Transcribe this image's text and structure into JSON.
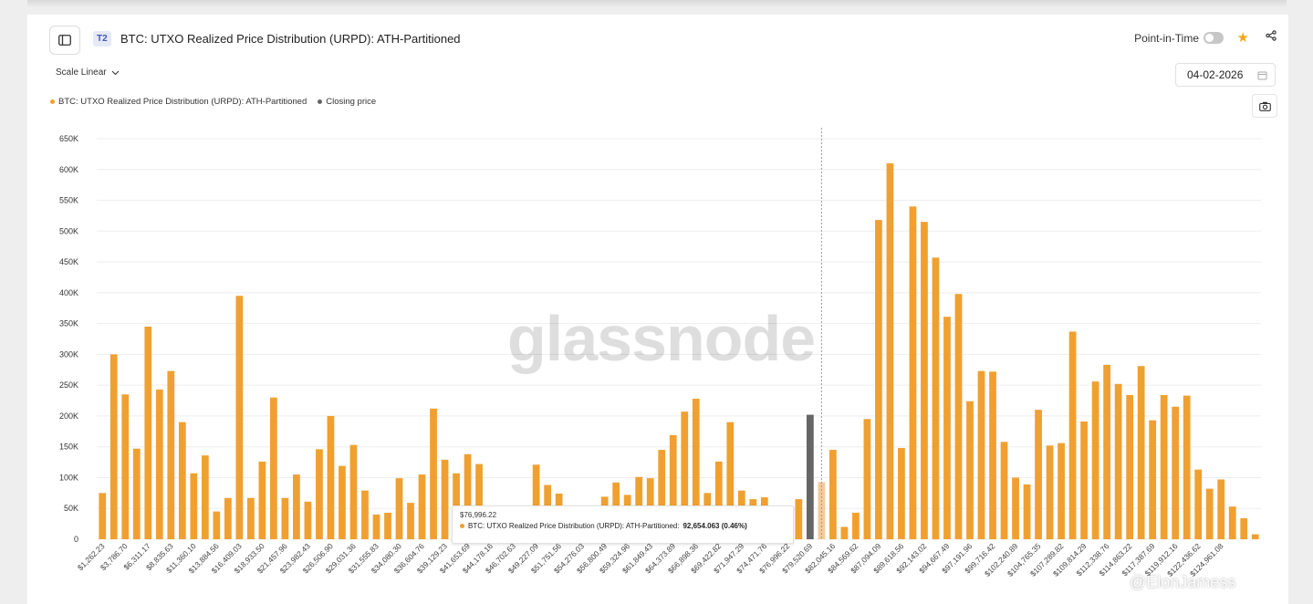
{
  "header": {
    "tier_badge": "T2",
    "title": "BTC: UTXO Realized Price Distribution (URPD): ATH-Partitioned",
    "point_in_time_label": "Point-in-Time"
  },
  "controls": {
    "scale_label": "Scale Linear",
    "date_value": "04-02-2026"
  },
  "legend": [
    {
      "label": "BTC: UTXO Realized Price Distribution (URPD): ATH-Partitioned",
      "color": "#f0a030"
    },
    {
      "label": "Closing price",
      "color": "#666666"
    }
  ],
  "watermark": "glassnode",
  "credit": "@ElonJamess",
  "tooltip": {
    "date": "$76,996.22",
    "series": "BTC: UTXO Realized Price Distribution (URPD): ATH-Partitioned:",
    "value": "92,654.063 (0.46%)"
  },
  "colors": {
    "bar": "#f0a030",
    "highlight_bar": "#f5c997",
    "closing_price": "#666666",
    "grid": "#eeeeee"
  },
  "chart_data": {
    "type": "bar",
    "ylim": [
      0,
      650000
    ],
    "yticks": [
      0,
      50000,
      100000,
      150000,
      200000,
      250000,
      300000,
      350000,
      400000,
      450000,
      500000,
      550000,
      600000,
      650000
    ],
    "ytick_labels": [
      "0",
      "50K",
      "100K",
      "150K",
      "200K",
      "250K",
      "300K",
      "350K",
      "400K",
      "450K",
      "500K",
      "550K",
      "600K",
      "650K"
    ],
    "tick_labels": [
      "$1,262.23",
      "$3,786.70",
      "$6,311.17",
      "$8,835.63",
      "$11,360.10",
      "$13,884.56",
      "$16,409.03",
      "$18,933.50",
      "$21,457.96",
      "$23,982.43",
      "$26,506.90",
      "$29,031.36",
      "$31,555.83",
      "$34,080.30",
      "$36,604.76",
      "$39,129.23",
      "$41,653.69",
      "$44,178.16",
      "$46,702.63",
      "$49,227.09",
      "$51,751.56",
      "$54,276.03",
      "$56,800.49",
      "$59,324.96",
      "$61,849.43",
      "$64,373.89",
      "$66,898.36",
      "$69,422.82",
      "$71,947.29",
      "$74,471.76",
      "$76,996.22",
      "$79,520.69",
      "$82,045.16",
      "$84,569.62",
      "$87,094.09",
      "$89,618.56",
      "$92,143.02",
      "$94,667.49",
      "$97,191.96",
      "$99,716.42",
      "$102,240.89",
      "$104,765.35",
      "$107,289.82",
      "$109,814.29",
      "$112,338.76",
      "$114,863.22",
      "$117,387.69",
      "$119,912.16",
      "$122,436.62",
      "$124,961.08"
    ],
    "values": [
      75000,
      300000,
      235000,
      147000,
      345000,
      243000,
      273000,
      190000,
      107000,
      136000,
      45000,
      67000,
      395000,
      67000,
      126000,
      230000,
      67000,
      105000,
      61000,
      146000,
      200000,
      119000,
      153000,
      79000,
      40000,
      43000,
      99000,
      59000,
      105000,
      212000,
      129000,
      107000,
      138000,
      122000,
      0,
      0,
      0,
      0,
      121000,
      88000,
      74000,
      0,
      0,
      0,
      69000,
      92000,
      72000,
      101000,
      99000,
      145000,
      169000,
      207000,
      228000,
      75000,
      126000,
      190000,
      79000,
      65000,
      68000,
      0,
      0,
      65000,
      0,
      92654,
      145000,
      20000,
      43000,
      195000,
      518000,
      610000,
      148000,
      540000,
      515000,
      457000,
      361000,
      398000,
      224000,
      273000,
      272000,
      158000,
      100000,
      89000,
      210000,
      152000,
      156000,
      337000,
      191000,
      256000,
      283000,
      252000,
      234000,
      281000,
      193000,
      234000,
      215000,
      233000,
      113000,
      82000,
      97000,
      53000,
      34000,
      8000
    ],
    "highlight_index": 63,
    "closing_price": {
      "label": "$76,996.22",
      "value": 202000
    }
  }
}
